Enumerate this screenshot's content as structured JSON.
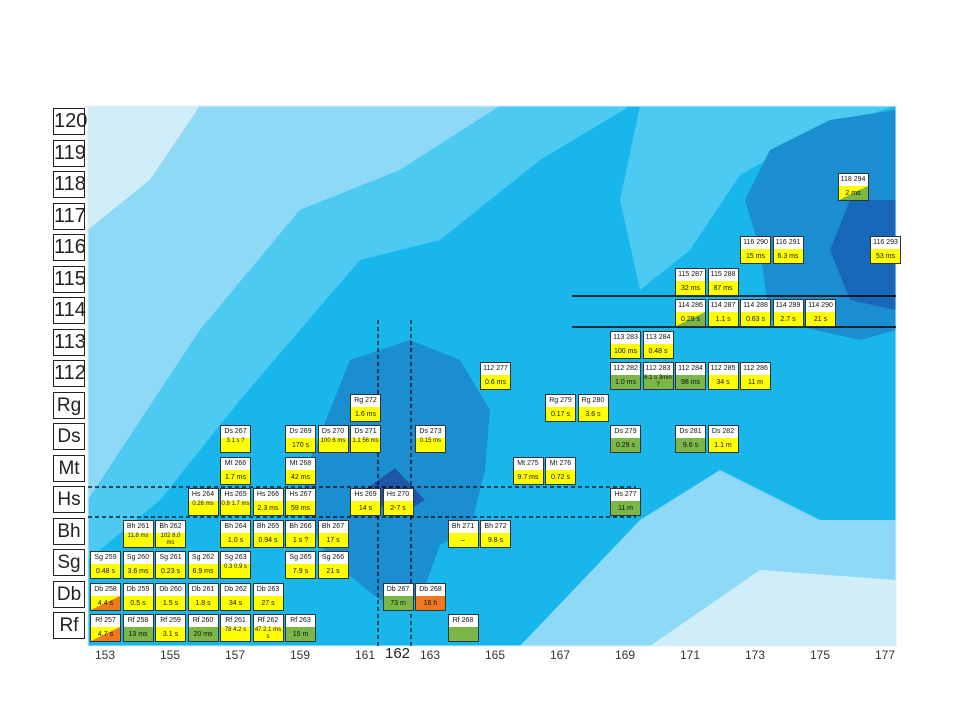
{
  "y_labels": [
    "120",
    "119",
    "118",
    "117",
    "116",
    "115",
    "114",
    "113",
    "112",
    "Rg",
    "Ds",
    "Mt",
    "Hs",
    "Bh",
    "Sg",
    "Db",
    "Rf"
  ],
  "x_labels": [
    "153",
    "155",
    "157",
    "159",
    "161",
    "162",
    "163",
    "165",
    "167",
    "169",
    "171",
    "173",
    "175",
    "177"
  ],
  "colors": {
    "yellow": "#ffff00",
    "green": "#7ab648",
    "orange": "#f0781e",
    "border": "#333333"
  },
  "cells": [
    {
      "x": 176,
      "y": 118,
      "label": "118  294",
      "value": "2 ms",
      "color": "yg"
    },
    {
      "x": 173,
      "y": 116,
      "label": "116  290",
      "value": "15 ms",
      "color": "yellow"
    },
    {
      "x": 174,
      "y": 116,
      "label": "116  291",
      "value": "6.3 ms",
      "color": "yellow"
    },
    {
      "x": 177,
      "y": 116,
      "label": "116  293",
      "value": "53 ms",
      "color": "yellow"
    },
    {
      "x": 171,
      "y": 115,
      "label": "115  287",
      "value": "32 ms",
      "color": "yellow"
    },
    {
      "x": 172,
      "y": 115,
      "label": "115  288",
      "value": "87 ms",
      "color": "yellow"
    },
    {
      "x": 171,
      "y": 114,
      "label": "114  286",
      "value": "0.29 s",
      "color": "yg"
    },
    {
      "x": 172,
      "y": 114,
      "label": "114  287",
      "value": "1.1 s",
      "color": "yellow"
    },
    {
      "x": 173,
      "y": 114,
      "label": "114  288",
      "value": "0.63 s",
      "color": "yellow"
    },
    {
      "x": 174,
      "y": 114,
      "label": "114  289",
      "value": "2.7 s",
      "color": "yellow"
    },
    {
      "x": 175,
      "y": 114,
      "label": "114  290",
      "value": "21 s",
      "color": "yellow"
    },
    {
      "x": 169,
      "y": 113,
      "label": "113  283",
      "value": "100 ms",
      "color": "yellow"
    },
    {
      "x": 170,
      "y": 113,
      "label": "113  284",
      "value": "0.48 s",
      "color": "yellow"
    },
    {
      "x": 165,
      "y": 112,
      "label": "112  277",
      "value": "0.6 ms",
      "color": "yellow"
    },
    {
      "x": 169,
      "y": 112,
      "label": "112  282",
      "value": "1.0 ms",
      "color": "green"
    },
    {
      "x": 170,
      "y": 112,
      "label": "112  283",
      "value": "6.1 s 3min ?",
      "color": "green"
    },
    {
      "x": 171,
      "y": 112,
      "label": "112  284",
      "value": "98 ms",
      "color": "green"
    },
    {
      "x": 172,
      "y": 112,
      "label": "112  285",
      "value": "34 s",
      "color": "yellow"
    },
    {
      "x": 173,
      "y": 112,
      "label": "112  286",
      "value": "11 m",
      "color": "yellow"
    },
    {
      "x": 161,
      "y": 111,
      "label": "Rg  272",
      "value": "1.6 ms",
      "color": "yellow"
    },
    {
      "x": 167,
      "y": 111,
      "label": "Rg  279",
      "value": "0.17 s",
      "color": "yellow"
    },
    {
      "x": 168,
      "y": 111,
      "label": "Rg  280",
      "value": "3.6 s",
      "color": "yellow"
    },
    {
      "x": 157,
      "y": 110,
      "label": "Ds  267",
      "value": "3.1 s ?",
      "color": "yellow"
    },
    {
      "x": 159,
      "y": 110,
      "label": "Ds  269",
      "value": "170 s",
      "color": "yellow"
    },
    {
      "x": 160,
      "y": 110,
      "label": "Ds  270",
      "value": "100 6 ms",
      "color": "yellow"
    },
    {
      "x": 161,
      "y": 110,
      "label": "Ds  271",
      "value": "1.1 56 ms",
      "color": "yellow"
    },
    {
      "x": 163,
      "y": 110,
      "label": "Ds  273",
      "value": "0.15 ms",
      "color": "yellow"
    },
    {
      "x": 169,
      "y": 110,
      "label": "Ds  279",
      "value": "0.29 s",
      "color": "green"
    },
    {
      "x": 171,
      "y": 110,
      "label": "Ds  281",
      "value": "9.6 s",
      "color": "green"
    },
    {
      "x": 172,
      "y": 110,
      "label": "Ds  282",
      "value": "1.1 m",
      "color": "yellow"
    },
    {
      "x": 157,
      "y": 109,
      "label": "Mt  266",
      "value": "1.7 ms",
      "color": "yellow"
    },
    {
      "x": 159,
      "y": 109,
      "label": "Mt  268",
      "value": "42 ms",
      "color": "yellow"
    },
    {
      "x": 166,
      "y": 109,
      "label": "Mt  275",
      "value": "9.7 ms",
      "color": "yellow"
    },
    {
      "x": 167,
      "y": 109,
      "label": "Mt  276",
      "value": "0.72 s",
      "color": "yellow"
    },
    {
      "x": 156,
      "y": 108,
      "label": "Hs  264",
      "value": "0.26 ms",
      "color": "yellow"
    },
    {
      "x": 157,
      "y": 108,
      "label": "Hs  265",
      "value": "0.8 1.7 ms",
      "color": "yellow"
    },
    {
      "x": 158,
      "y": 108,
      "label": "Hs  266",
      "value": "2.3 ms",
      "color": "yellow"
    },
    {
      "x": 159,
      "y": 108,
      "label": "Hs  267",
      "value": "59 ms",
      "color": "yellow"
    },
    {
      "x": 161,
      "y": 108,
      "label": "Hs  269",
      "value": "14 s",
      "color": "yellow"
    },
    {
      "x": 162,
      "y": 108,
      "label": "Hs  270",
      "value": "2-7 s",
      "color": "yellow"
    },
    {
      "x": 169,
      "y": 108,
      "label": "Hs  277",
      "value": "11 m",
      "color": "green"
    },
    {
      "x": 154,
      "y": 107,
      "label": "Bh  261",
      "value": "11.8 ms",
      "color": "yellow"
    },
    {
      "x": 155,
      "y": 107,
      "label": "Bh  262",
      "value": "102 8.0 ms",
      "color": "yellow"
    },
    {
      "x": 157,
      "y": 107,
      "label": "Bh  264",
      "value": "1.0 s",
      "color": "yellow"
    },
    {
      "x": 158,
      "y": 107,
      "label": "Bh  265",
      "value": "0.94 s",
      "color": "yellow"
    },
    {
      "x": 159,
      "y": 107,
      "label": "Bh  266",
      "value": "1 s ?",
      "color": "yellow"
    },
    {
      "x": 160,
      "y": 107,
      "label": "Bh  267",
      "value": "17 s",
      "color": "yellow"
    },
    {
      "x": 164,
      "y": 107,
      "label": "Bh  271",
      "value": "–",
      "color": "yellow"
    },
    {
      "x": 165,
      "y": 107,
      "label": "Bh  272",
      "value": "9.8 s",
      "color": "yellow"
    },
    {
      "x": 153,
      "y": 106,
      "label": "Sg  259",
      "value": "0.48 s",
      "color": "yellow"
    },
    {
      "x": 154,
      "y": 106,
      "label": "Sg  260",
      "value": "3.6 ms",
      "color": "yellow"
    },
    {
      "x": 155,
      "y": 106,
      "label": "Sg  261",
      "value": "0.23 s",
      "color": "yellow"
    },
    {
      "x": 156,
      "y": 106,
      "label": "Sg  262",
      "value": "6.9 ms",
      "color": "yellow"
    },
    {
      "x": 157,
      "y": 106,
      "label": "Sg  263",
      "value": "0.3 0.9 s",
      "color": "yellow"
    },
    {
      "x": 159,
      "y": 106,
      "label": "Sg  265",
      "value": "7.9 s",
      "color": "yellow"
    },
    {
      "x": 160,
      "y": 106,
      "label": "Sg  266",
      "value": "21 s",
      "color": "yellow"
    },
    {
      "x": 153,
      "y": 105,
      "label": "Db  258",
      "value": "4.4 s",
      "color": "oy"
    },
    {
      "x": 154,
      "y": 105,
      "label": "Db  259",
      "value": "0.5 s",
      "color": "yellow"
    },
    {
      "x": 155,
      "y": 105,
      "label": "Db  260",
      "value": "1.5 s",
      "color": "yellow"
    },
    {
      "x": 156,
      "y": 105,
      "label": "Db  261",
      "value": "1.8 s",
      "color": "yellow"
    },
    {
      "x": 157,
      "y": 105,
      "label": "Db  262",
      "value": "34 s",
      "color": "yellow"
    },
    {
      "x": 158,
      "y": 105,
      "label": "Db  263",
      "value": "27 s",
      "color": "yellow"
    },
    {
      "x": 162,
      "y": 105,
      "label": "Db  267",
      "value": "73 m",
      "color": "green"
    },
    {
      "x": 163,
      "y": 105,
      "label": "Db  268",
      "value": "16 h",
      "color": "orange"
    },
    {
      "x": 153,
      "y": 104,
      "label": "Rf  257",
      "value": "4.7 s",
      "color": "oy"
    },
    {
      "x": 154,
      "y": 104,
      "label": "Rf  258",
      "value": "13 ms",
      "color": "green"
    },
    {
      "x": 155,
      "y": 104,
      "label": "Rf  259",
      "value": "3.1 s",
      "color": "yellow"
    },
    {
      "x": 156,
      "y": 104,
      "label": "Rf  260",
      "value": "20 ms",
      "color": "green"
    },
    {
      "x": 157,
      "y": 104,
      "label": "Rf  261",
      "value": "78 4.2 s",
      "color": "yellow"
    },
    {
      "x": 158,
      "y": 104,
      "label": "Rf  262",
      "value": "47 2.1 ms s",
      "color": "yellow"
    },
    {
      "x": 159,
      "y": 104,
      "label": "Rf  263",
      "value": "15 m",
      "color": "green"
    },
    {
      "x": 164,
      "y": 104,
      "label": "Rf  268",
      "value": "",
      "color": "green"
    }
  ]
}
